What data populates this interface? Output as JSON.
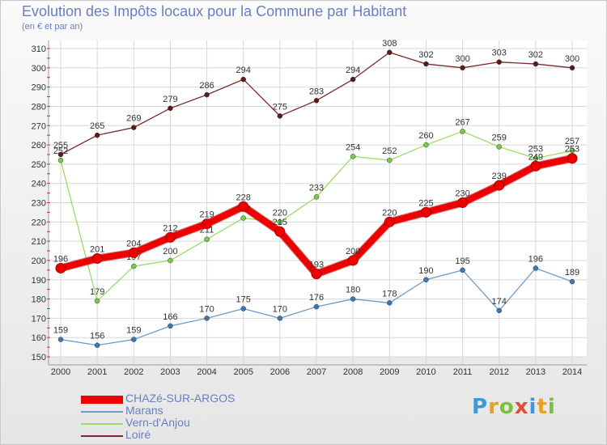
{
  "header": {
    "title": "Evolution des Impôts locaux pour la Commune par Habitant",
    "subtitle": "(en € et par an)"
  },
  "logo": {
    "text": "Proxiti",
    "colors": [
      "#3a9ad9",
      "#e8a020",
      "#7cc040",
      "#e05030"
    ]
  },
  "chart_data": {
    "type": "line",
    "title": "Evolution des Impôts locaux pour la Commune par Habitant",
    "ylabel": "(en € et par an)",
    "xlabel": "",
    "categories": [
      "2000",
      "2001",
      "2002",
      "2003",
      "2004",
      "2005",
      "2006",
      "2007",
      "2008",
      "2009",
      "2010",
      "2011",
      "2012",
      "2013",
      "2014"
    ],
    "y_ticks": [
      "150",
      "160",
      "170",
      "180",
      "190",
      "200",
      "210",
      "220",
      "230",
      "240",
      "250",
      "260",
      "270",
      "280",
      "290",
      "300",
      "310"
    ],
    "ylim": [
      150,
      310
    ],
    "grid": true,
    "legend_position": "bottom-left",
    "series": [
      {
        "name": "Loiré",
        "color": "#7a2a2a",
        "dot": "#5a1a1a",
        "emphasis": false,
        "values": [
          255,
          265,
          269,
          279,
          286,
          294,
          275,
          283,
          294,
          308,
          302,
          300,
          303,
          302,
          300
        ],
        "labels": [
          "255",
          "265",
          "269",
          "279",
          "286",
          "294",
          "275",
          "283",
          "294",
          "308",
          "302",
          "300",
          "303",
          "302",
          "300"
        ]
      },
      {
        "name": "Vern-d'Anjou",
        "color": "#99dd66",
        "dot": "#77cc44",
        "emphasis": false,
        "values": [
          252,
          179,
          197,
          200,
          211,
          222,
          220,
          233,
          254,
          252,
          260,
          267,
          259,
          253,
          257
        ],
        "labels": [
          "252",
          "179",
          "197",
          "200",
          "211",
          "222",
          "220",
          "233",
          "254",
          "252",
          "260",
          "267",
          "259",
          "253",
          "257"
        ]
      },
      {
        "name": "Marans",
        "color": "#6a9ccc",
        "dot": "#3a78b8",
        "emphasis": false,
        "values": [
          159,
          156,
          159,
          166,
          170,
          175,
          170,
          176,
          180,
          178,
          190,
          195,
          174,
          196,
          189
        ],
        "labels": [
          "159",
          "156",
          "159",
          "166",
          "170",
          "175",
          "170",
          "176",
          "180",
          "178",
          "190",
          "195",
          "174",
          "196",
          "189"
        ]
      },
      {
        "name": "CHAZé-SUR-ARGOS",
        "color": "#ee0000",
        "dot": "#ee0000",
        "emphasis": true,
        "values": [
          196,
          201,
          204,
          212,
          219,
          228,
          215,
          193,
          200,
          220,
          225,
          230,
          239,
          249,
          253
        ],
        "labels": [
          "196",
          "201",
          "204",
          "212",
          "219",
          "228",
          "215",
          "193",
          "200",
          "220",
          "225",
          "230",
          "239",
          "249",
          "253"
        ]
      }
    ],
    "legend_order": [
      "CHAZé-SUR-ARGOS",
      "Marans",
      "Vern-d'Anjou",
      "Loiré"
    ]
  }
}
